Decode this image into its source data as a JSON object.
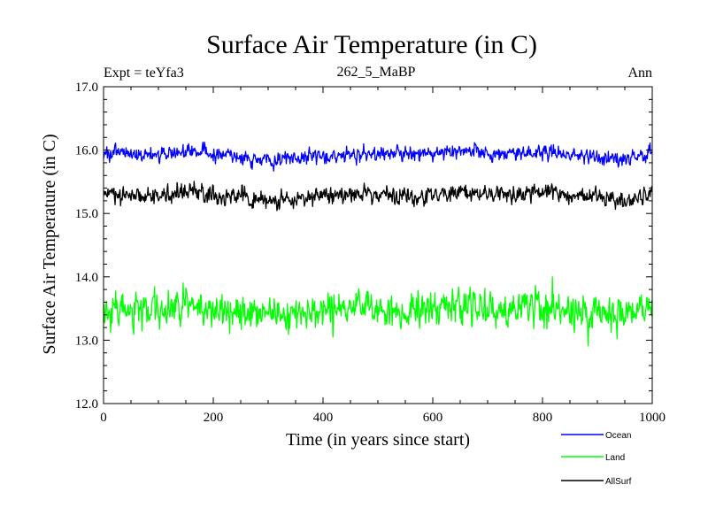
{
  "chart_data": {
    "type": "line",
    "title": "Surface Air Temperature (in C)",
    "subtitle_left": "Expt = teYfa3",
    "subtitle_center": "262_5_MaBP",
    "subtitle_right": "Ann",
    "xlabel": "Time (in years since start)",
    "ylabel": "Surface Air Temperature (in C)",
    "xlim": [
      0,
      1000
    ],
    "ylim": [
      12.0,
      17.0
    ],
    "xticks": [
      0,
      200,
      400,
      600,
      800,
      1000
    ],
    "xtick_labels": [
      "0",
      "200",
      "400",
      "600",
      "800",
      "1000"
    ],
    "yticks": [
      12.0,
      13.0,
      14.0,
      15.0,
      16.0,
      17.0
    ],
    "ytick_labels": [
      "12.0",
      "13.0",
      "14.0",
      "15.0",
      "16.0",
      "17.0"
    ],
    "grid": false,
    "legend_position": "bottom-right",
    "series": [
      {
        "name": "Ocean",
        "color": "#0000ff",
        "x": [
          0,
          50,
          100,
          150,
          200,
          250,
          300,
          350,
          400,
          450,
          500,
          550,
          600,
          650,
          700,
          750,
          800,
          850,
          900,
          950,
          1000
        ],
        "mean": [
          15.95,
          15.94,
          15.93,
          15.98,
          15.95,
          15.88,
          15.85,
          15.88,
          15.9,
          15.93,
          15.96,
          15.93,
          15.95,
          15.97,
          15.94,
          15.95,
          15.97,
          15.93,
          15.88,
          15.87,
          15.97
        ],
        "noise_sd": 0.06
      },
      {
        "name": "Land",
        "color": "#00ff00",
        "x": [
          0,
          50,
          100,
          150,
          200,
          250,
          300,
          350,
          400,
          450,
          500,
          550,
          600,
          650,
          700,
          750,
          800,
          850,
          900,
          950,
          1000
        ],
        "mean": [
          13.45,
          13.48,
          13.45,
          13.55,
          13.5,
          13.45,
          13.42,
          13.45,
          13.48,
          13.5,
          13.48,
          13.45,
          13.48,
          13.52,
          13.5,
          13.48,
          13.5,
          13.47,
          13.45,
          13.4,
          13.5
        ],
        "noise_sd": 0.14
      },
      {
        "name": "AllSurf",
        "color": "#000000",
        "x": [
          0,
          50,
          100,
          150,
          200,
          250,
          300,
          350,
          400,
          450,
          500,
          550,
          600,
          650,
          700,
          750,
          800,
          850,
          900,
          950,
          1000
        ],
        "mean": [
          15.27,
          15.28,
          15.27,
          15.35,
          15.3,
          15.25,
          15.22,
          15.25,
          15.27,
          15.3,
          15.3,
          15.27,
          15.28,
          15.32,
          15.3,
          15.3,
          15.33,
          15.28,
          15.25,
          15.2,
          15.33
        ],
        "noise_sd": 0.07
      }
    ]
  }
}
